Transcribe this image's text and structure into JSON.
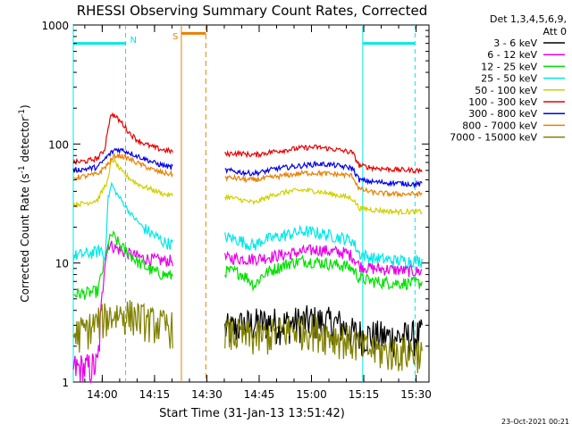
{
  "chart_data": {
    "type": "line",
    "title": "RHESSI Observing Summary Count Rates, Corrected",
    "xlabel": "Start Time (31-Jan-13 13:51:42)",
    "ylabel_main": "Corrected Count Rate (s",
    "ylabel_sup1": "-1",
    "ylabel_mid": " detector",
    "ylabel_sup2": "-1",
    "ylabel_end": ")",
    "y_scale": "log",
    "ylim": [
      1,
      1000
    ],
    "xlim_minutes": [
      0,
      102
    ],
    "y_ticks": [
      {
        "v": 1,
        "label": "1"
      },
      {
        "v": 10,
        "label": "10"
      },
      {
        "v": 100,
        "label": "100"
      },
      {
        "v": 1000,
        "label": "1000"
      }
    ],
    "x_ticks": [
      {
        "t": 8.3,
        "label": "14:00"
      },
      {
        "t": 23.3,
        "label": "14:15"
      },
      {
        "t": 38.3,
        "label": "14:30"
      },
      {
        "t": 53.3,
        "label": "14:45"
      },
      {
        "t": 68.3,
        "label": "15:00"
      },
      {
        "t": 83.3,
        "label": "15:15"
      },
      {
        "t": 98.3,
        "label": "15:30"
      }
    ],
    "legend_title": "Det 1,3,4,5,6,9,",
    "legend_subtitle": "Att 0",
    "series": [
      {
        "name": "3 - 6 keV",
        "color": "#000000",
        "points": [
          [
            41,
            2.8
          ],
          [
            46,
            2.8
          ],
          [
            48,
            3.0
          ],
          [
            52,
            3.1
          ],
          [
            56,
            3.2
          ],
          [
            60,
            3.1
          ],
          [
            64,
            3.2
          ],
          [
            68,
            3.3
          ],
          [
            72,
            3.2
          ],
          [
            76,
            3.1
          ],
          [
            80,
            2.6
          ],
          [
            84,
            2.5
          ],
          [
            90,
            2.4
          ],
          [
            96,
            2.4
          ],
          [
            100,
            2.5
          ]
        ]
      },
      {
        "name": "6 - 12 keV",
        "color": "#e800e8",
        "points": [
          [
            0,
            1.3
          ],
          [
            4,
            1.3
          ],
          [
            7,
            1.4
          ],
          [
            9,
            10.0
          ],
          [
            10,
            14.5
          ],
          [
            12,
            13.5
          ],
          [
            14,
            12.5
          ],
          [
            16,
            12.0
          ],
          [
            18,
            11.5
          ],
          [
            20,
            11.0
          ],
          [
            22,
            10.8
          ],
          [
            24,
            10.6
          ],
          [
            26,
            10.5
          ],
          [
            28,
            10.5
          ],
          [
            44,
            11.0
          ],
          [
            46,
            11.0
          ],
          [
            50,
            10.8
          ],
          [
            54,
            11.0
          ],
          [
            58,
            11.5
          ],
          [
            62,
            12.0
          ],
          [
            66,
            12.5
          ],
          [
            70,
            13.0
          ],
          [
            74,
            12.5
          ],
          [
            78,
            12.2
          ],
          [
            80,
            11.5
          ],
          [
            82,
            9.5
          ],
          [
            86,
            9.0
          ],
          [
            92,
            8.8
          ],
          [
            98,
            8.5
          ],
          [
            100,
            8.5
          ]
        ]
      },
      {
        "name": "12 - 25 keV",
        "color": "#00e000",
        "points": [
          [
            0,
            5.5
          ],
          [
            4,
            5.6
          ],
          [
            7,
            5.8
          ],
          [
            10,
            14.0
          ],
          [
            11,
            17.5
          ],
          [
            12,
            16.0
          ],
          [
            14,
            13.5
          ],
          [
            16,
            12.0
          ],
          [
            18,
            10.5
          ],
          [
            20,
            9.5
          ],
          [
            22,
            8.8
          ],
          [
            24,
            8.3
          ],
          [
            26,
            8.0
          ],
          [
            28,
            7.8
          ],
          [
            44,
            8.5
          ],
          [
            46,
            8.5
          ],
          [
            48,
            8.2
          ],
          [
            50,
            7.5
          ],
          [
            52,
            6.5
          ],
          [
            54,
            7.8
          ],
          [
            56,
            8.5
          ],
          [
            58,
            9.0
          ],
          [
            62,
            10.0
          ],
          [
            66,
            10.5
          ],
          [
            70,
            10.2
          ],
          [
            74,
            9.8
          ],
          [
            78,
            9.5
          ],
          [
            80,
            9.0
          ],
          [
            82,
            7.5
          ],
          [
            86,
            7.0
          ],
          [
            92,
            6.8
          ],
          [
            98,
            6.8
          ],
          [
            100,
            6.8
          ]
        ]
      },
      {
        "name": "25 - 50 keV",
        "color": "#00e8e8",
        "points": [
          [
            0,
            11.5
          ],
          [
            4,
            12.0
          ],
          [
            7,
            12.5
          ],
          [
            8,
            13.0
          ],
          [
            9,
            10.5
          ],
          [
            10,
            35.0
          ],
          [
            11,
            46.0
          ],
          [
            12,
            40.0
          ],
          [
            14,
            33.0
          ],
          [
            16,
            27.0
          ],
          [
            18,
            23.0
          ],
          [
            20,
            20.0
          ],
          [
            22,
            18.0
          ],
          [
            24,
            16.5
          ],
          [
            26,
            15.0
          ],
          [
            28,
            14.5
          ],
          [
            44,
            16.5
          ],
          [
            46,
            16.0
          ],
          [
            48,
            15.5
          ],
          [
            50,
            14.5
          ],
          [
            52,
            14.0
          ],
          [
            54,
            15.5
          ],
          [
            56,
            16.0
          ],
          [
            58,
            16.5
          ],
          [
            62,
            17.5
          ],
          [
            66,
            18.5
          ],
          [
            70,
            18.0
          ],
          [
            74,
            17.0
          ],
          [
            78,
            16.0
          ],
          [
            80,
            15.5
          ],
          [
            82,
            12.0
          ],
          [
            86,
            11.0
          ],
          [
            92,
            10.5
          ],
          [
            98,
            10.5
          ],
          [
            100,
            10.5
          ]
        ]
      },
      {
        "name": "50 - 100 keV",
        "color": "#d0d000",
        "points": [
          [
            0,
            31
          ],
          [
            4,
            32
          ],
          [
            7,
            34
          ],
          [
            10,
            50
          ],
          [
            11,
            75
          ],
          [
            12,
            70
          ],
          [
            14,
            58
          ],
          [
            16,
            52
          ],
          [
            18,
            47
          ],
          [
            20,
            44
          ],
          [
            22,
            42
          ],
          [
            24,
            40
          ],
          [
            26,
            38
          ],
          [
            28,
            37
          ],
          [
            44,
            36
          ],
          [
            46,
            35
          ],
          [
            48,
            34
          ],
          [
            50,
            33
          ],
          [
            52,
            32
          ],
          [
            54,
            34
          ],
          [
            56,
            36
          ],
          [
            58,
            38
          ],
          [
            62,
            40
          ],
          [
            66,
            41
          ],
          [
            70,
            40
          ],
          [
            74,
            38
          ],
          [
            78,
            36
          ],
          [
            80,
            35
          ],
          [
            82,
            29
          ],
          [
            86,
            28
          ],
          [
            92,
            27
          ],
          [
            98,
            27
          ],
          [
            100,
            27
          ]
        ]
      },
      {
        "name": "100 - 300 keV",
        "color": "#e80000",
        "points": [
          [
            0,
            70
          ],
          [
            4,
            72
          ],
          [
            7,
            76
          ],
          [
            9,
            90
          ],
          [
            10,
            140
          ],
          [
            11,
            180
          ],
          [
            12,
            170
          ],
          [
            14,
            150
          ],
          [
            16,
            125
          ],
          [
            18,
            110
          ],
          [
            20,
            102
          ],
          [
            22,
            96
          ],
          [
            24,
            92
          ],
          [
            26,
            89
          ],
          [
            28,
            87
          ],
          [
            44,
            82
          ],
          [
            46,
            84
          ],
          [
            48,
            83
          ],
          [
            50,
            82
          ],
          [
            52,
            81
          ],
          [
            54,
            83
          ],
          [
            56,
            85
          ],
          [
            58,
            87
          ],
          [
            62,
            90
          ],
          [
            66,
            93
          ],
          [
            70,
            94
          ],
          [
            74,
            91
          ],
          [
            78,
            87
          ],
          [
            80,
            85
          ],
          [
            82,
            66
          ],
          [
            86,
            63
          ],
          [
            92,
            61
          ],
          [
            98,
            60
          ],
          [
            100,
            60
          ]
        ]
      },
      {
        "name": "300 - 800 keV",
        "color": "#0000e8",
        "points": [
          [
            0,
            60
          ],
          [
            4,
            62
          ],
          [
            7,
            64
          ],
          [
            10,
            80
          ],
          [
            12,
            90
          ],
          [
            14,
            89
          ],
          [
            16,
            85
          ],
          [
            18,
            80
          ],
          [
            20,
            76
          ],
          [
            22,
            72
          ],
          [
            24,
            68
          ],
          [
            26,
            66
          ],
          [
            28,
            64
          ],
          [
            44,
            60
          ],
          [
            46,
            59
          ],
          [
            48,
            58
          ],
          [
            50,
            57
          ],
          [
            52,
            57
          ],
          [
            54,
            58
          ],
          [
            56,
            60
          ],
          [
            58,
            62
          ],
          [
            62,
            64
          ],
          [
            66,
            66
          ],
          [
            70,
            68
          ],
          [
            74,
            67
          ],
          [
            78,
            64
          ],
          [
            80,
            63
          ],
          [
            82,
            50
          ],
          [
            86,
            48
          ],
          [
            92,
            47
          ],
          [
            98,
            46
          ],
          [
            100,
            46
          ]
        ]
      },
      {
        "name": "800 - 7000 keV",
        "color": "#e88000",
        "points": [
          [
            0,
            52
          ],
          [
            4,
            54
          ],
          [
            7,
            56
          ],
          [
            10,
            68
          ],
          [
            12,
            80
          ],
          [
            14,
            79
          ],
          [
            16,
            75
          ],
          [
            18,
            70
          ],
          [
            20,
            66
          ],
          [
            22,
            62
          ],
          [
            24,
            59
          ],
          [
            26,
            57
          ],
          [
            28,
            56
          ],
          [
            44,
            52
          ],
          [
            46,
            52
          ],
          [
            48,
            51
          ],
          [
            50,
            50
          ],
          [
            52,
            50
          ],
          [
            54,
            51
          ],
          [
            56,
            52
          ],
          [
            58,
            53
          ],
          [
            62,
            55
          ],
          [
            66,
            57
          ],
          [
            70,
            57
          ],
          [
            74,
            56
          ],
          [
            78,
            55
          ],
          [
            80,
            54
          ],
          [
            82,
            42
          ],
          [
            86,
            39
          ],
          [
            92,
            38
          ],
          [
            98,
            38
          ],
          [
            100,
            38
          ]
        ]
      },
      {
        "name": "7000 - 15000 keV",
        "color": "#808000",
        "points": [
          [
            0,
            2.5
          ],
          [
            4,
            2.8
          ],
          [
            7,
            3.2
          ],
          [
            10,
            3.6
          ],
          [
            14,
            3.8
          ],
          [
            18,
            3.6
          ],
          [
            22,
            3.2
          ],
          [
            26,
            3.0
          ],
          [
            28,
            2.9
          ],
          [
            44,
            2.6
          ],
          [
            48,
            2.5
          ],
          [
            52,
            2.4
          ],
          [
            56,
            2.5
          ],
          [
            60,
            2.7
          ],
          [
            64,
            2.8
          ],
          [
            68,
            2.8
          ],
          [
            72,
            2.6
          ],
          [
            76,
            2.4
          ],
          [
            80,
            2.2
          ],
          [
            84,
            1.9
          ],
          [
            90,
            1.8
          ],
          [
            96,
            1.8
          ],
          [
            100,
            1.8
          ]
        ]
      }
    ],
    "intervals": [
      {
        "kind": "night",
        "label": "",
        "color": "#00e8e8",
        "t_start": 0,
        "t_end": 15
      },
      {
        "kind": "saa",
        "label": "S",
        "color": "#e88000",
        "t_start": 31,
        "t_end": 38
      },
      {
        "kind": "night",
        "label": "",
        "color": "#00e8e8",
        "t_start": 83,
        "t_end": 98
      }
    ],
    "interval_marker_label": "N",
    "footer_date": "23-Oct-2021 00:21"
  }
}
